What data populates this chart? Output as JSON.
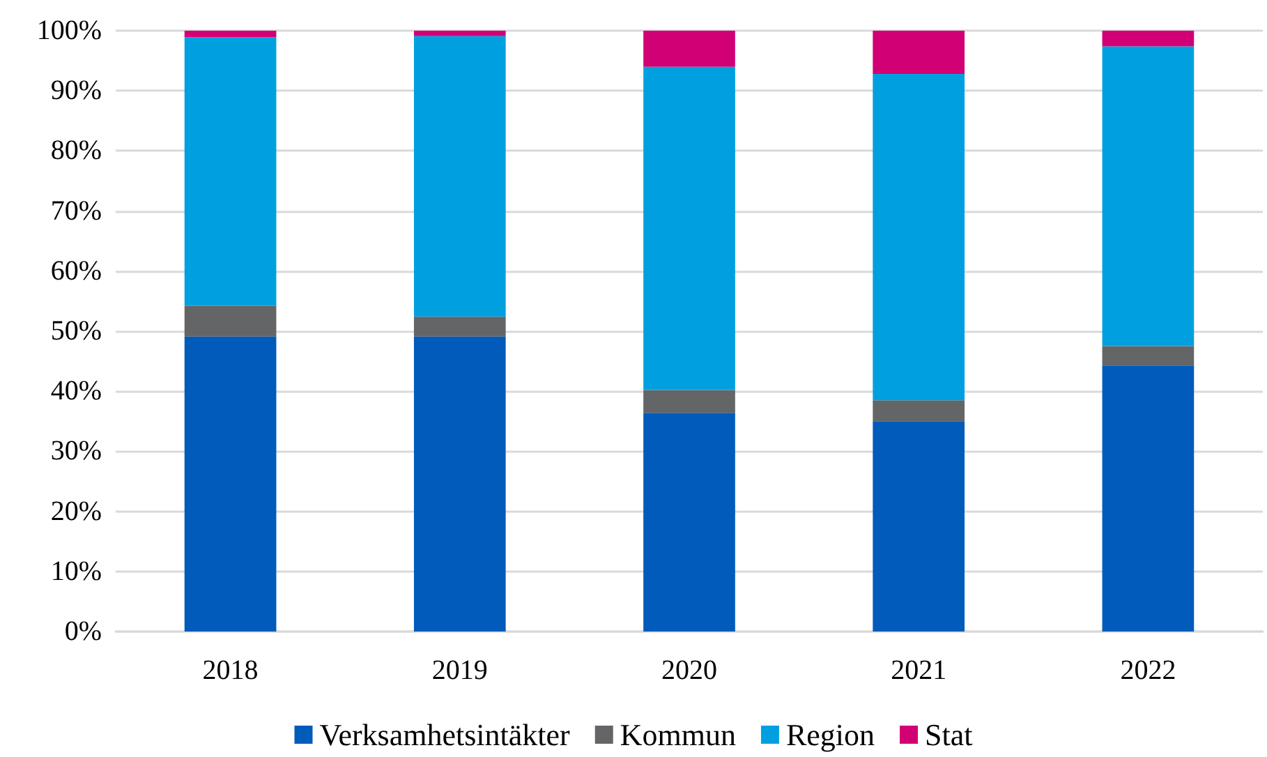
{
  "chart_data": {
    "type": "bar",
    "stacked": true,
    "categories": [
      "2018",
      "2019",
      "2020",
      "2021",
      "2022"
    ],
    "series": [
      {
        "name": "Verksamhetsintäkter",
        "color": "#005bbb",
        "values": [
          49.1,
          49.1,
          36.4,
          35.0,
          44.3
        ]
      },
      {
        "name": "Kommun",
        "color": "#646567",
        "values": [
          5.1,
          3.3,
          3.8,
          3.5,
          3.2
        ]
      },
      {
        "name": "Region",
        "color": "#00a0e0",
        "values": [
          44.7,
          46.7,
          53.8,
          54.3,
          49.9
        ]
      },
      {
        "name": "Stat",
        "color": "#d10074",
        "values": [
          1.1,
          0.9,
          6.0,
          7.2,
          2.6
        ]
      }
    ],
    "ylim": [
      0,
      100
    ],
    "yticks": [
      {
        "value": 0,
        "label": "0%"
      },
      {
        "value": 10,
        "label": "10%"
      },
      {
        "value": 20,
        "label": "20%"
      },
      {
        "value": 30,
        "label": "30%"
      },
      {
        "value": 40,
        "label": "40%"
      },
      {
        "value": 50,
        "label": "50%"
      },
      {
        "value": 60,
        "label": "60%"
      },
      {
        "value": 70,
        "label": "70%"
      },
      {
        "value": 80,
        "label": "80%"
      },
      {
        "value": 90,
        "label": "90%"
      },
      {
        "value": 100,
        "label": "100%"
      }
    ],
    "grid": "y",
    "legend": "bottom"
  }
}
